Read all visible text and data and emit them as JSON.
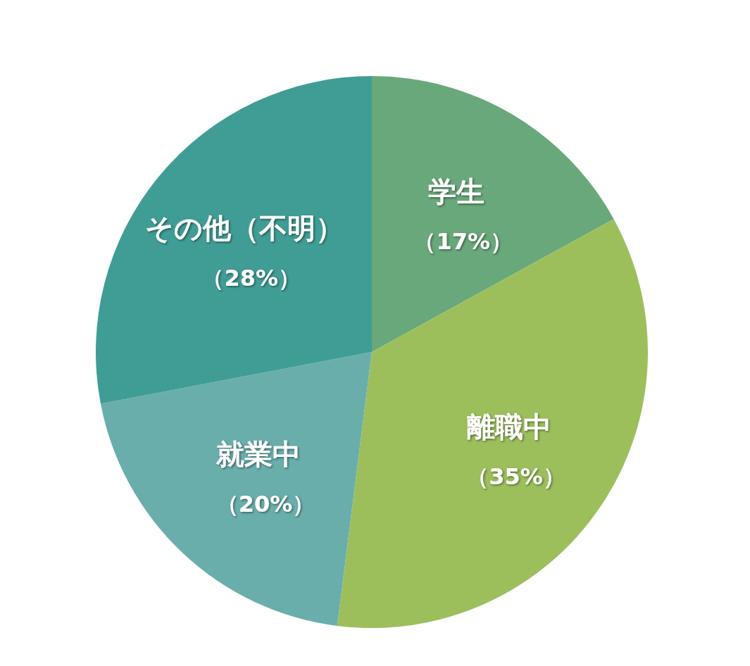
{
  "chart_data": {
    "type": "pie",
    "categories": [
      "学生",
      "離職中",
      "就業中",
      "その他（不明）"
    ],
    "values": [
      17,
      35,
      20,
      28
    ],
    "value_labels": [
      "（17%）",
      "（35%）",
      "（20%）",
      "（28%）"
    ],
    "colors": [
      "#69a87a",
      "#9cbf5c",
      "#6aaeac",
      "#409d95"
    ]
  }
}
